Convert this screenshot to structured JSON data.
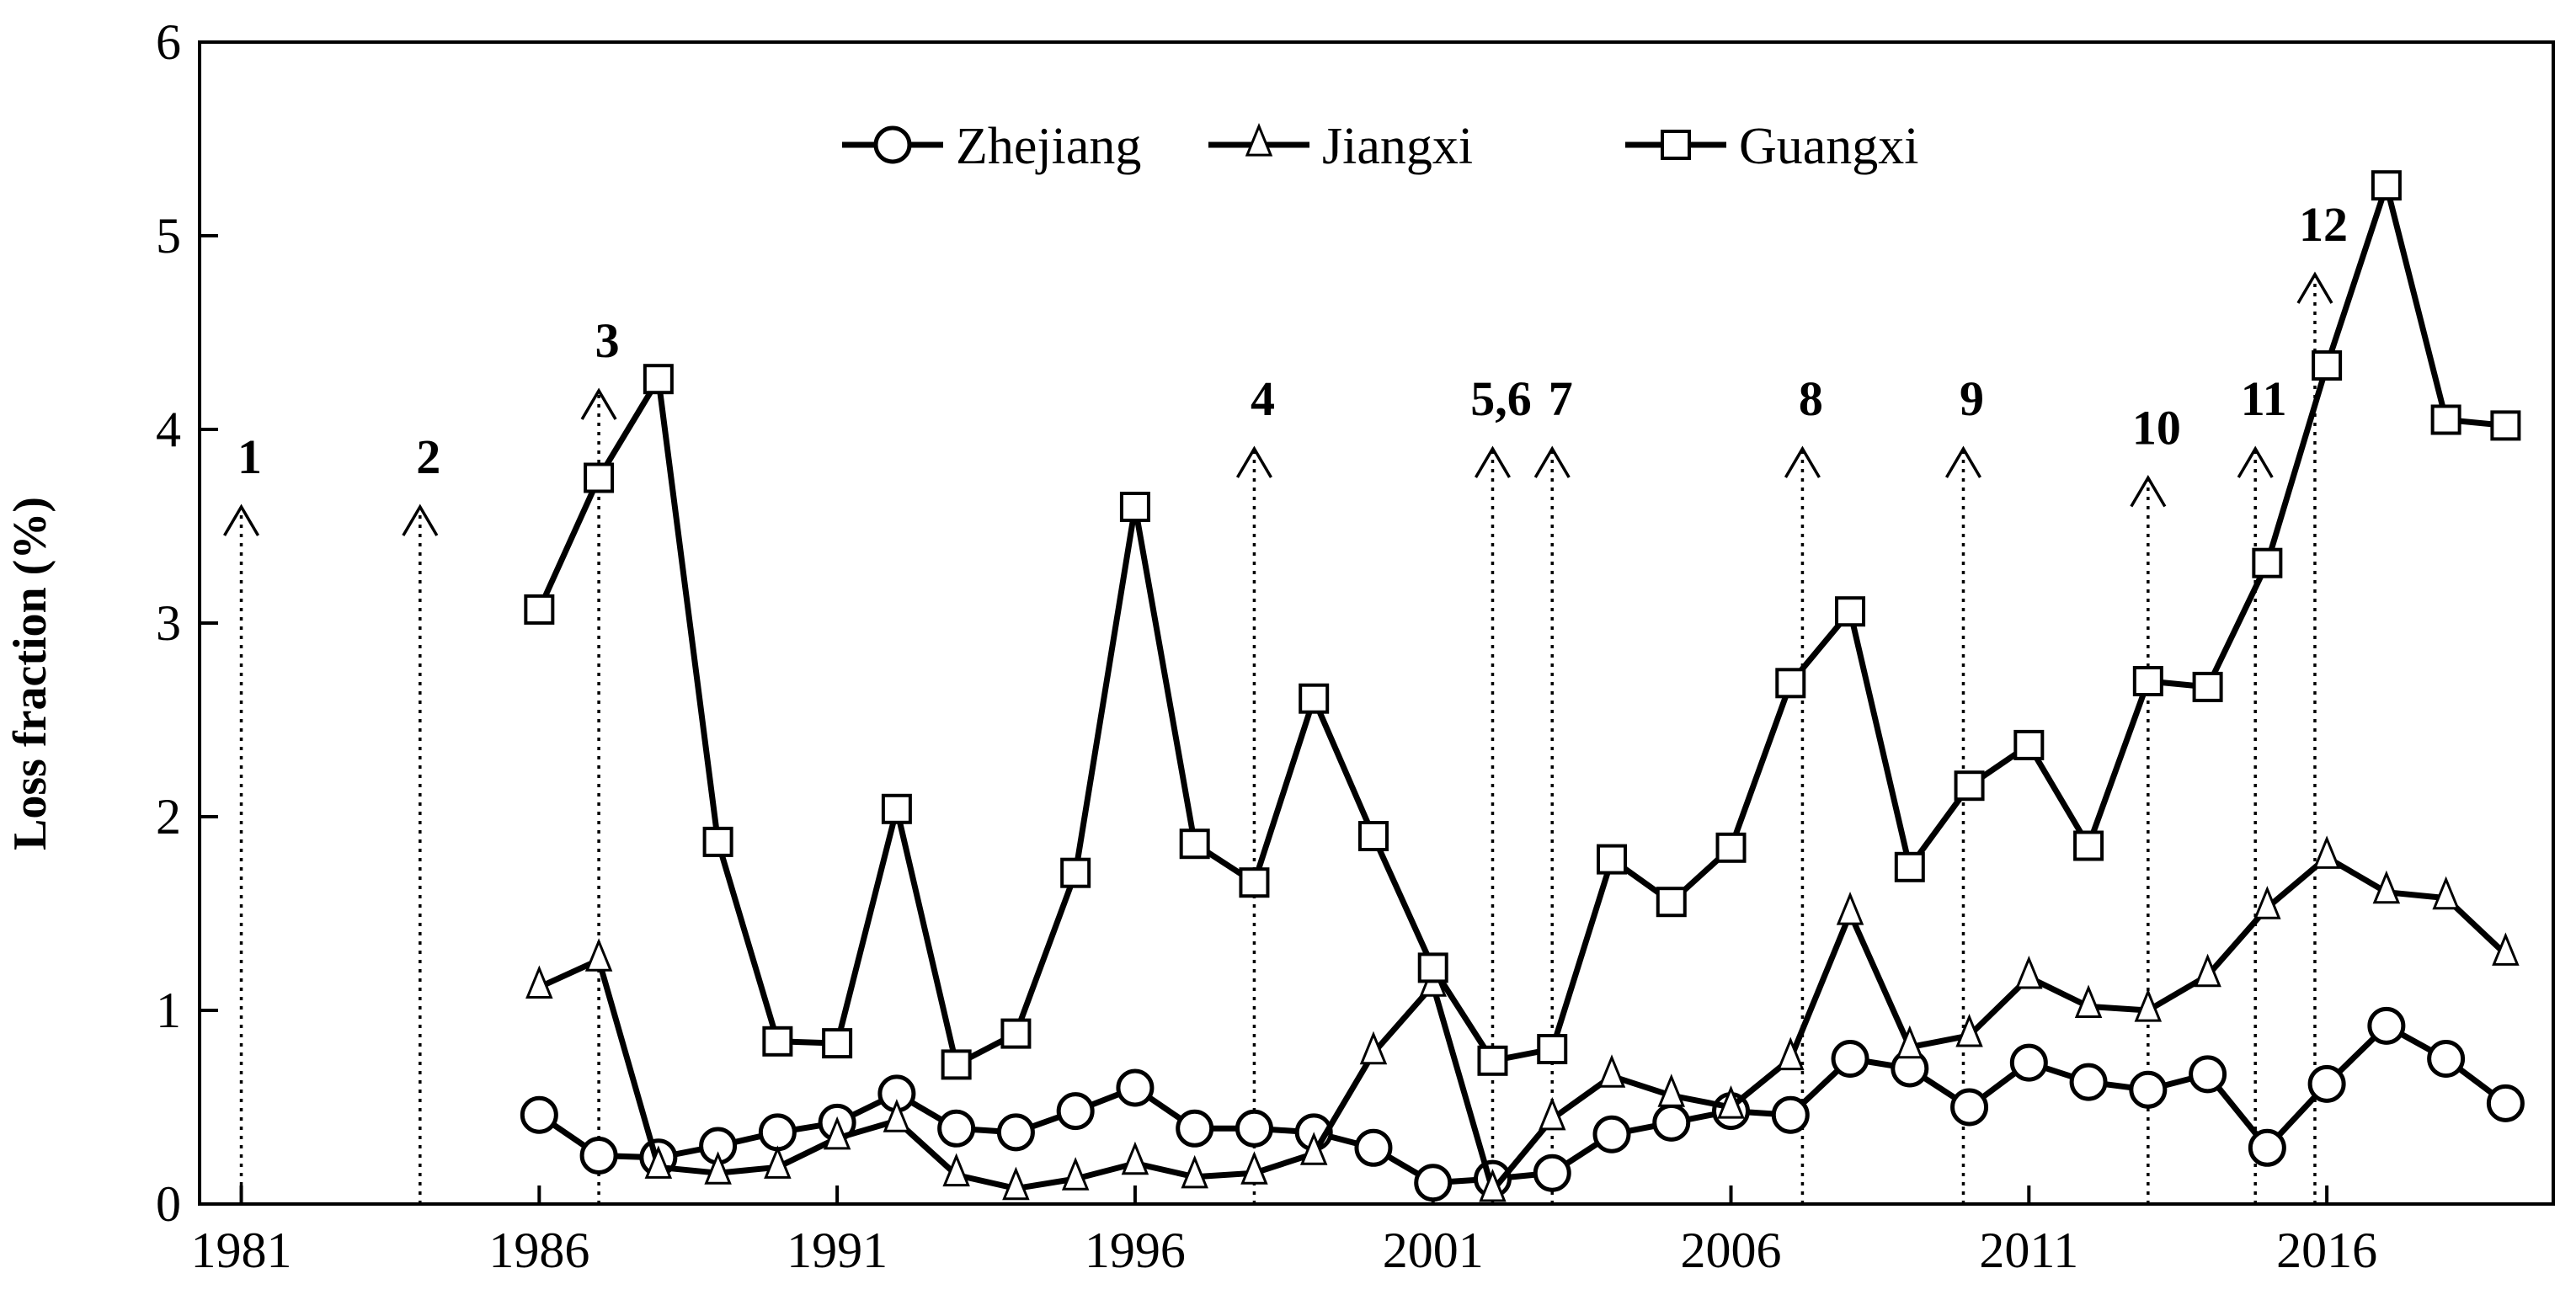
{
  "chart_data": {
    "type": "line",
    "title": "",
    "xlabel": "",
    "ylabel": "Loss fraction (%)",
    "xlim": [
      1980.3,
      2019.8
    ],
    "ylim": [
      0,
      6
    ],
    "xticks": [
      1981,
      1986,
      1991,
      1996,
      2001,
      2006,
      2011,
      2016
    ],
    "yticks": [
      0,
      1,
      2,
      3,
      4,
      5,
      6
    ],
    "grid": false,
    "legend_position": "top-center",
    "x": [
      1986,
      1987,
      1988,
      1989,
      1990,
      1991,
      1992,
      1993,
      1994,
      1995,
      1996,
      1997,
      1998,
      1999,
      2000,
      2001,
      2002,
      2003,
      2004,
      2005,
      2006,
      2007,
      2008,
      2009,
      2010,
      2011,
      2012,
      2013,
      2014,
      2015,
      2016,
      2017,
      2018,
      2019
    ],
    "series": [
      {
        "name": "Zhejiang",
        "marker": "circle",
        "values": [
          0.46,
          0.25,
          0.24,
          0.3,
          0.37,
          0.42,
          0.57,
          0.39,
          0.37,
          0.48,
          0.6,
          0.39,
          0.39,
          0.37,
          0.29,
          0.11,
          0.13,
          0.16,
          0.36,
          0.42,
          0.48,
          0.46,
          0.75,
          0.7,
          0.5,
          0.73,
          0.63,
          0.59,
          0.67,
          0.29,
          0.62,
          0.92,
          0.75,
          0.52
        ]
      },
      {
        "name": "Jiangxi",
        "marker": "triangle",
        "values": [
          1.12,
          1.26,
          0.19,
          0.16,
          0.19,
          0.34,
          0.43,
          0.15,
          0.08,
          0.13,
          0.21,
          0.14,
          0.16,
          0.26,
          0.78,
          1.13,
          0.07,
          0.44,
          0.66,
          0.56,
          0.5,
          0.75,
          1.5,
          0.81,
          0.87,
          1.17,
          1.02,
          1.0,
          1.18,
          1.53,
          1.79,
          1.61,
          1.58,
          1.29
        ]
      },
      {
        "name": "Guangxi",
        "marker": "square",
        "values": [
          3.07,
          3.75,
          4.26,
          1.87,
          0.84,
          0.83,
          2.04,
          0.72,
          0.88,
          1.71,
          3.6,
          1.86,
          1.66,
          2.61,
          1.9,
          1.22,
          0.74,
          0.8,
          1.78,
          1.56,
          1.84,
          2.69,
          3.06,
          1.74,
          2.16,
          2.37,
          1.85,
          2.7,
          2.67,
          3.31,
          4.33,
          5.26,
          4.05,
          4.02
        ]
      }
    ],
    "events": [
      {
        "label": "1",
        "x": 1981,
        "top": 3.6
      },
      {
        "label": "2",
        "x": 1984,
        "top": 3.6
      },
      {
        "label": "3",
        "x": 1987,
        "top": 4.2
      },
      {
        "label": "4",
        "x": 1998,
        "top": 3.9
      },
      {
        "label": "5,6",
        "x": 2002,
        "top": 3.9
      },
      {
        "label": "7",
        "x": 2003,
        "top": 3.9
      },
      {
        "label": "8",
        "x": 2007.2,
        "top": 3.9
      },
      {
        "label": "9",
        "x": 2009.9,
        "top": 3.9
      },
      {
        "label": "10",
        "x": 2013,
        "top": 3.75
      },
      {
        "label": "11",
        "x": 2014.8,
        "top": 3.9
      },
      {
        "label": "12",
        "x": 2015.8,
        "top": 4.8
      }
    ]
  }
}
